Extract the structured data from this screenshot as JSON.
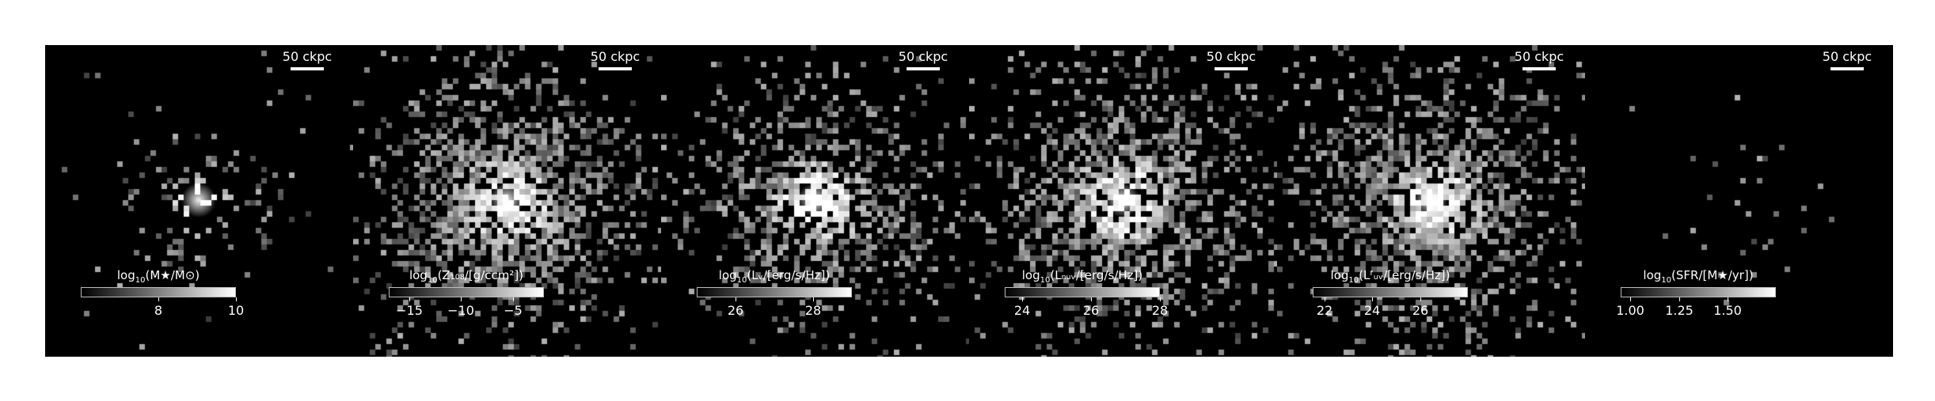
{
  "panels": [
    {
      "id": "mass",
      "scalebar": "50 ckpc",
      "colorbar": {
        "label_main": "log",
        "label_sub": "10",
        "label_rest": "(M★/M⊙)",
        "ticks": [
          {
            "value": 8,
            "label": "8"
          },
          {
            "value": 10,
            "label": "10"
          }
        ],
        "range": [
          6.0,
          10.0
        ]
      },
      "map": {
        "spread": 0.55,
        "density": 0.25,
        "core": 1.0
      }
    },
    {
      "id": "metallicity",
      "scalebar": "50 ckpc",
      "colorbar": {
        "label_main": "log",
        "label_sub": "10",
        "label_rest": "(Z₁₀₈/[g/ccm²])",
        "ticks": [
          {
            "value": -15,
            "label": "−15"
          },
          {
            "value": -10,
            "label": "−10"
          },
          {
            "value": -5,
            "label": "−5"
          }
        ],
        "range": [
          -17.0,
          -2.0
        ]
      },
      "map": {
        "spread": 1.0,
        "density": 0.75,
        "core": 0.85
      }
    },
    {
      "id": "luminosity-v",
      "scalebar": "50 ckpc",
      "colorbar": {
        "label_main": "log",
        "label_sub": "10",
        "label_rest": "(Lᵥ/[erg/s/Hz])",
        "ticks": [
          {
            "value": 26,
            "label": "26"
          },
          {
            "value": 28,
            "label": "28"
          }
        ],
        "range": [
          25.0,
          29.0
        ]
      },
      "map": {
        "spread": 0.9,
        "density": 0.6,
        "core": 0.95
      }
    },
    {
      "id": "luminosity-nuv",
      "scalebar": "50 ckpc",
      "colorbar": {
        "label_main": "log",
        "label_sub": "10",
        "label_rest": "(Lₙᵤᵥ/[erg/s/Hz])",
        "ticks": [
          {
            "value": 24,
            "label": "24"
          },
          {
            "value": 26,
            "label": "26"
          },
          {
            "value": 28,
            "label": "28"
          }
        ],
        "range": [
          23.5,
          28.0
        ]
      },
      "map": {
        "spread": 1.0,
        "density": 0.7,
        "core": 0.85
      }
    },
    {
      "id": "luminosity-fuv",
      "scalebar": "50 ckpc",
      "colorbar": {
        "label_main": "log",
        "label_sub": "10",
        "label_rest": "(Lᶠᵤᵥ/[erg/s/Hz])",
        "ticks": [
          {
            "value": 22,
            "label": "22"
          },
          {
            "value": 24,
            "label": "24"
          },
          {
            "value": 26,
            "label": "26"
          }
        ],
        "range": [
          21.5,
          28.0
        ]
      },
      "map": {
        "spread": 1.0,
        "density": 0.75,
        "core": 0.8
      }
    },
    {
      "id": "sfr",
      "scalebar": "50 ckpc",
      "colorbar": {
        "label_main": "log",
        "label_sub": "10",
        "label_rest": "(SFR/[M★/yr])",
        "ticks": [
          {
            "value": 1.0,
            "label": "1.00"
          },
          {
            "value": 1.25,
            "label": "1.25"
          },
          {
            "value": 1.5,
            "label": "1.50"
          }
        ],
        "range": [
          0.95,
          1.75
        ]
      },
      "map": {
        "spread": 0.6,
        "density": 0.04,
        "core": 0.0
      }
    }
  ]
}
